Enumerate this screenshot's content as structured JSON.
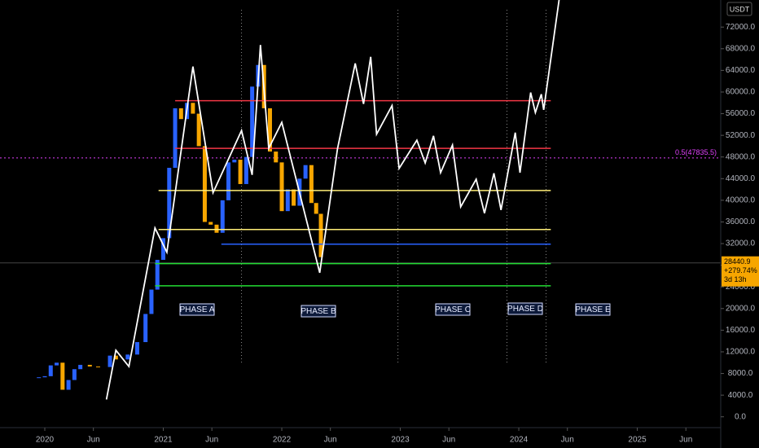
{
  "chart_data": {
    "type": "candlestick",
    "y_unit": "USDT",
    "xlim": [
      2019.622,
      2025.704
    ],
    "ylim": [
      -2000,
      77000
    ],
    "xticks": [
      2020,
      {
        "value": 2020.41,
        "label": "Jun"
      },
      2021,
      {
        "value": 2021.41,
        "label": "Jun"
      },
      2022,
      {
        "value": 2022.41,
        "label": "Jun"
      },
      2023,
      {
        "value": 2023.41,
        "label": "Jun"
      },
      2024,
      {
        "value": 2024.41,
        "label": "Jun"
      },
      2025,
      {
        "value": 2025.41,
        "label": "Jun"
      }
    ],
    "yticks": [
      {
        "value": 0,
        "label": "0.0"
      },
      {
        "value": 4000,
        "label": "4000.0"
      },
      {
        "value": 8000,
        "label": "8000.0"
      },
      {
        "value": 12000,
        "label": "12000.0"
      },
      {
        "value": 16000,
        "label": "16000.0"
      },
      {
        "value": 20000,
        "label": "20000.0"
      },
      {
        "value": 24000,
        "label": "24000.0"
      },
      {
        "value": 28000,
        "label": "28000.0"
      },
      {
        "value": 32000,
        "label": "32000.0"
      },
      {
        "value": 36000,
        "label": "36000.0"
      },
      {
        "value": 40000,
        "label": "40000.0"
      },
      {
        "value": 44000,
        "label": "44000.0"
      },
      {
        "value": 48000,
        "label": "48000.0"
      },
      {
        "value": 52000,
        "label": "52000.0"
      },
      {
        "value": 56000,
        "label": "56000.0"
      },
      {
        "value": 60000,
        "label": "60000.0"
      },
      {
        "value": 64000,
        "label": "64000.0"
      },
      {
        "value": 68000,
        "label": "68000.0"
      },
      {
        "value": 72000,
        "label": "72000.0"
      }
    ],
    "price": {
      "up_color": "#2962ff",
      "down_color": "#f7a600",
      "x": [
        2019.95,
        2020.0,
        2020.05,
        2020.1,
        2020.15,
        2020.2,
        2020.25,
        2020.3,
        2020.38,
        2020.45,
        2020.55,
        2020.6,
        2020.7,
        2020.78,
        2020.85,
        2020.9,
        2020.95,
        2021.0,
        2021.05,
        2021.1,
        2021.15,
        2021.2,
        2021.25,
        2021.3,
        2021.35,
        2021.4,
        2021.45,
        2021.5,
        2021.55,
        2021.6,
        2021.65,
        2021.7,
        2021.75,
        2021.8,
        2021.85,
        2021.9,
        2021.95,
        2022.0,
        2022.05,
        2022.1,
        2022.15,
        2022.2,
        2022.25,
        2022.29,
        2022.33
      ],
      "values": [
        7300,
        7500,
        9500,
        10000,
        5000,
        6800,
        8800,
        9600,
        9300,
        9200,
        11300,
        10600,
        11500,
        13800,
        19000,
        23500,
        29000,
        33000,
        46000,
        57000,
        55000,
        58000,
        56000,
        50000,
        36000,
        35500,
        34000,
        40000,
        47000,
        47500,
        43000,
        48000,
        61000,
        65000,
        57000,
        49000,
        47000,
        38000,
        42000,
        39000,
        44000,
        46500,
        39500,
        37500,
        29500
      ]
    },
    "projection": {
      "color": "#ffffff",
      "x": [
        2020.52,
        2020.6,
        2020.71,
        2020.93,
        2021.03,
        2021.25,
        2021.42,
        2021.66,
        2021.75,
        2021.82,
        2021.89,
        2022.0,
        2022.32,
        2022.47,
        2022.62,
        2022.69,
        2022.75,
        2022.8,
        2022.93,
        2022.99,
        2023.14,
        2023.21,
        2023.28,
        2023.34,
        2023.44,
        2023.51,
        2023.64,
        2023.71,
        2023.79,
        2023.85,
        2023.97,
        2024.01,
        2024.1,
        2024.14,
        2024.19,
        2024.21,
        2024.34
      ],
      "values": [
        3200,
        12300,
        9300,
        34900,
        30400,
        64700,
        41400,
        52900,
        44700,
        68700,
        49600,
        54400,
        26600,
        49500,
        65300,
        57800,
        66500,
        52200,
        57500,
        45900,
        51100,
        46900,
        51900,
        45100,
        50200,
        38800,
        43900,
        37600,
        45000,
        38200,
        52500,
        45100,
        59900,
        56200,
        59600,
        56700,
        77000
      ]
    },
    "levels": [
      {
        "value": 58400,
        "color": "#f23645",
        "from": 2021.1
      },
      {
        "value": 49600,
        "color": "#f23645",
        "from": 2021.1
      },
      {
        "value": 41800,
        "color": "#ffee77",
        "from": 2020.96
      },
      {
        "value": 34600,
        "color": "#ffee77",
        "from": 2020.96
      },
      {
        "value": 31900,
        "color": "#2962ff",
        "from": 2021.49
      },
      {
        "value": 28300,
        "color": "#22dd33",
        "from": 2020.93
      },
      {
        "value": 24200,
        "color": "#22dd33",
        "from": 2020.93
      }
    ],
    "levels_end": 2024.27,
    "fib": {
      "value": 47835.5,
      "label": "0.5(47835.5)",
      "color": "#e040fb"
    },
    "dividers": [
      2021.66,
      2022.98,
      2023.9,
      2024.23
    ],
    "phases": [
      "PHASE A",
      "PHASE B",
      "PHASE C",
      "PHASE D",
      "PHASE E"
    ],
    "last_price": 28440.9,
    "change": "+279.74%",
    "countdown": "3d 13h"
  }
}
